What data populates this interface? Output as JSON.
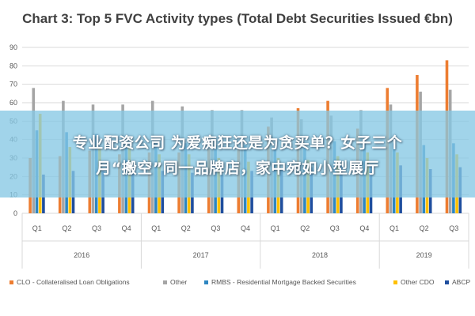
{
  "chart_data": {
    "type": "bar",
    "title": "Chart 3: Top 5 FVC Activity types (Total Debt Securities Issued €bn)",
    "ylim": [
      0,
      90
    ],
    "yticks": [
      0,
      10,
      20,
      30,
      40,
      50,
      60,
      70,
      80,
      90
    ],
    "grid": true,
    "legend_position": "bottom",
    "categories": [
      "Q1",
      "Q2",
      "Q3",
      "Q4",
      "Q1",
      "Q2",
      "Q3",
      "Q4",
      "Q1",
      "Q2",
      "Q3",
      "Q4",
      "Q1",
      "Q2",
      "Q3"
    ],
    "groups": [
      {
        "label": "2016",
        "count": 4
      },
      {
        "label": "2017",
        "count": 4
      },
      {
        "label": "2018",
        "count": 4
      },
      {
        "label": "2019",
        "count": 3
      }
    ],
    "series": [
      {
        "name": "CLO - Collateralised Loan Obligations",
        "color": "#ED7D31",
        "values": [
          30,
          31,
          34,
          32,
          33,
          33,
          35,
          35,
          47,
          57,
          61,
          46,
          68,
          75,
          83
        ]
      },
      {
        "name": "Other",
        "color": "#A5A5A5",
        "values": [
          68,
          61,
          59,
          59,
          61,
          58,
          56,
          56,
          52,
          51,
          53,
          56,
          59,
          66,
          67
        ]
      },
      {
        "name": "RMBS - Residential Mortgage Backed Securities",
        "color": "#2E86C1",
        "values": [
          45,
          44,
          43,
          40,
          38,
          38,
          37,
          37,
          36,
          36,
          39,
          38,
          38,
          37,
          38
        ]
      },
      {
        "name": "Other CDO",
        "color": "#FFC000",
        "values": [
          54,
          36,
          36,
          36,
          32,
          32,
          30,
          28,
          30,
          29,
          31,
          33,
          33,
          30,
          32
        ]
      },
      {
        "name": "ABCP",
        "color": "#1F4E9E",
        "values": [
          21,
          23,
          23,
          22,
          23,
          22,
          21,
          23,
          24,
          25,
          26,
          26,
          26,
          24,
          25
        ]
      }
    ]
  },
  "overlay": {
    "line1": "专业配资公司 为爱痴狂还是为贪买单？女子三个",
    "line2": "月“搬空”同一品牌店，家中宛如小型展厅"
  }
}
